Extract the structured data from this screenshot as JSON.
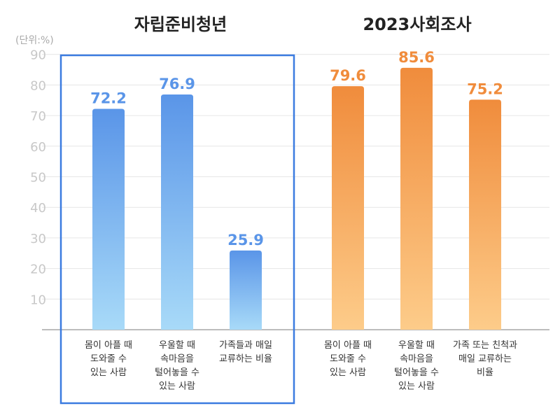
{
  "chart_data": {
    "type": "bar",
    "unit_label": "(단위:%)",
    "ylim": [
      0,
      90
    ],
    "yticks": [
      10,
      20,
      30,
      40,
      50,
      60,
      70,
      80,
      90
    ],
    "groups": [
      {
        "title": "자립준비청년",
        "color_top": "#5a95e8",
        "color_bottom": "#a8daf8",
        "label_color": "#5a95e8",
        "categories": [
          [
            "몸이 아플 때",
            "도와줄 수",
            "있는 사람"
          ],
          [
            "우울할 때",
            "속마음을",
            "털어놓을 수",
            "있는 사람"
          ],
          [
            "가족들과 매일",
            "교류하는 비율"
          ]
        ],
        "values": [
          72.2,
          76.9,
          25.9
        ]
      },
      {
        "title": "2023사회조사",
        "color_top": "#f08c3c",
        "color_bottom": "#fdcc8a",
        "label_color": "#f08c3c",
        "categories": [
          [
            "몸이 아플 때",
            "도와줄 수",
            "있는 사람"
          ],
          [
            "우울할 때",
            "속마음을",
            "털어놓을 수",
            "있는 사람"
          ],
          [
            "가족 또는 친척과",
            "매일 교류하는",
            "비율"
          ]
        ],
        "values": [
          79.6,
          85.6,
          75.2
        ]
      }
    ],
    "highlight_box_color": "#3b7be0"
  }
}
